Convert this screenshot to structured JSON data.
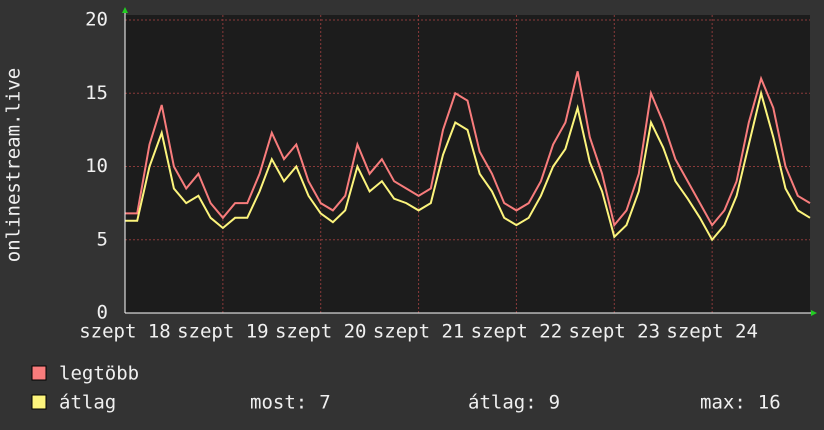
{
  "chart_data": {
    "type": "line",
    "y_label": "onlinestream.live",
    "xlim": [
      18,
      25
    ],
    "xticks": [
      {
        "value": 18,
        "label": "szept 18"
      },
      {
        "value": 19,
        "label": "szept 19"
      },
      {
        "value": 20,
        "label": "szept 20"
      },
      {
        "value": 21,
        "label": "szept 21"
      },
      {
        "value": 22,
        "label": "szept 22"
      },
      {
        "value": 23,
        "label": "szept 23"
      },
      {
        "value": 24,
        "label": "szept 24"
      }
    ],
    "ylim": [
      0,
      20
    ],
    "yticks": [
      0,
      5,
      10,
      15,
      20
    ],
    "grid": true,
    "x": [
      18,
      18.125,
      18.25,
      18.375,
      18.5,
      18.625,
      18.75,
      18.875,
      19,
      19.125,
      19.25,
      19.375,
      19.5,
      19.625,
      19.75,
      19.875,
      20,
      20.125,
      20.25,
      20.375,
      20.5,
      20.625,
      20.75,
      20.875,
      21,
      21.125,
      21.25,
      21.375,
      21.5,
      21.625,
      21.75,
      21.875,
      22,
      22.125,
      22.25,
      22.375,
      22.5,
      22.625,
      22.75,
      22.875,
      23,
      23.125,
      23.25,
      23.375,
      23.5,
      23.625,
      23.75,
      23.875,
      24,
      24.125,
      24.25,
      24.375,
      24.5,
      24.625,
      24.75,
      24.875,
      25
    ],
    "series": [
      {
        "name": "legtöbb",
        "color": "#f87c7c",
        "values": [
          6.8,
          6.8,
          11.5,
          14.2,
          10,
          8.5,
          9.5,
          7.5,
          6.5,
          7.5,
          7.5,
          9.5,
          12.3,
          10.5,
          11.5,
          9,
          7.5,
          7,
          8,
          11.5,
          9.5,
          10.5,
          9,
          8.5,
          8,
          8.5,
          12.5,
          15,
          14.5,
          11,
          9.5,
          7.5,
          7,
          7.5,
          9,
          11.5,
          13,
          16.5,
          12,
          9.5,
          6,
          7,
          9.5,
          15,
          13,
          10.5,
          9,
          7.5,
          6,
          7,
          9,
          13,
          16,
          14,
          10,
          8,
          7.5
        ]
      },
      {
        "name": "átlag",
        "color": "#fcf47c",
        "values": [
          6.3,
          6.3,
          10,
          12.3,
          8.5,
          7.5,
          8,
          6.5,
          5.8,
          6.5,
          6.5,
          8.3,
          10.5,
          9,
          10,
          8,
          6.8,
          6.2,
          7,
          10,
          8.3,
          9,
          7.8,
          7.5,
          7,
          7.5,
          10.8,
          13,
          12.5,
          9.5,
          8.3,
          6.5,
          6,
          6.5,
          8,
          10,
          11.2,
          14,
          10.3,
          8.3,
          5.2,
          6,
          8.3,
          13,
          11.3,
          9,
          7.8,
          6.5,
          5,
          6,
          8,
          11.5,
          15,
          12,
          8.5,
          7,
          6.5
        ]
      }
    ],
    "stats": [
      {
        "label": "most:",
        "value": 7
      },
      {
        "label": "átlag:",
        "value": 9
      },
      {
        "label": "max:",
        "value": 16
      }
    ]
  }
}
